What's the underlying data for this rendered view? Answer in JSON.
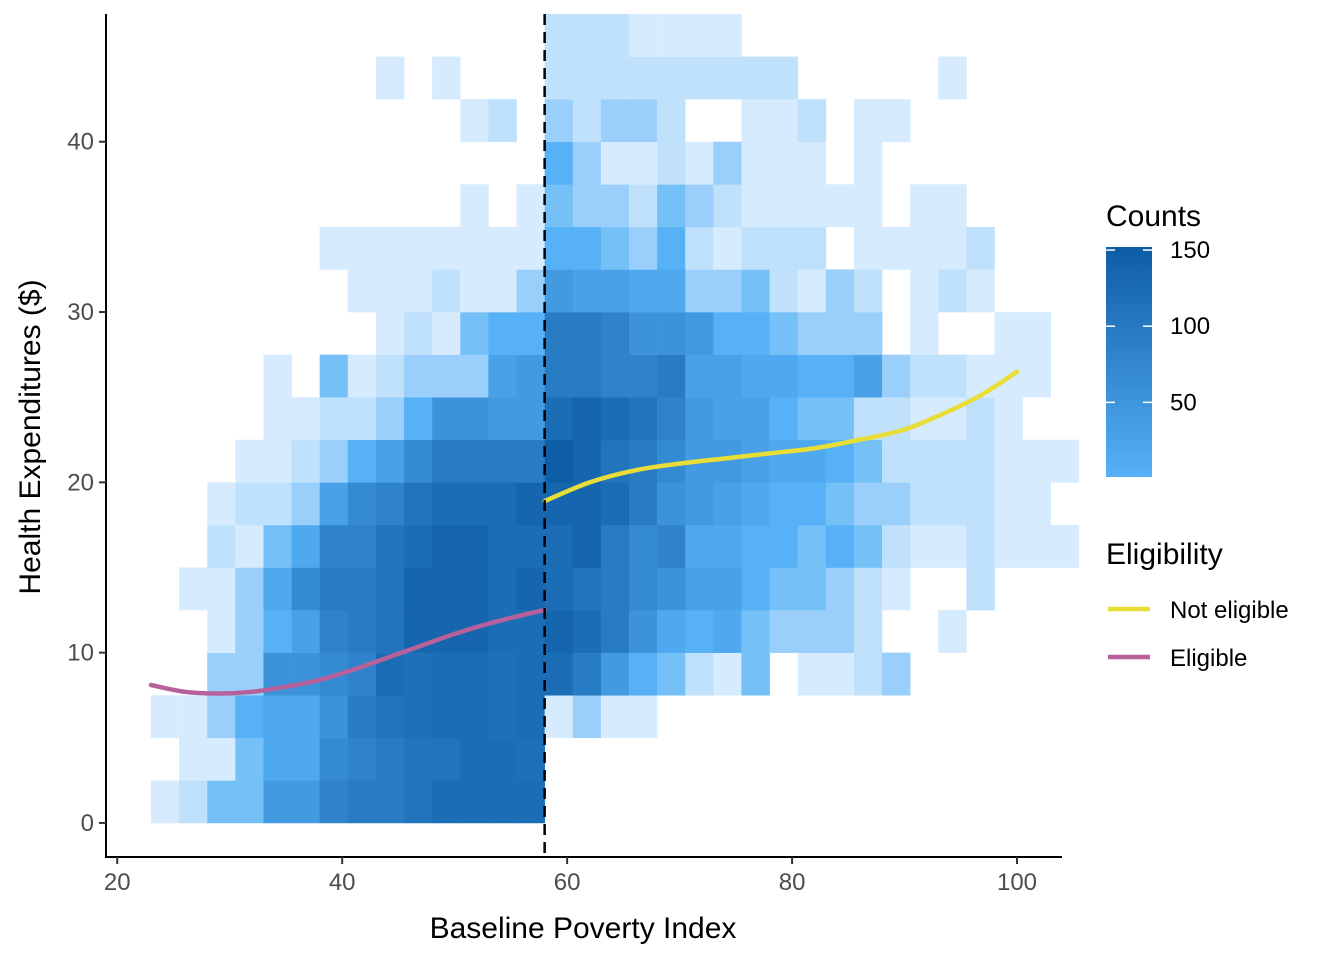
{
  "chart_data": {
    "type": "heatmap",
    "title": "",
    "xlabel": "Baseline Poverty Index",
    "ylabel": "Health Expenditures ($)",
    "xlim": [
      19,
      104
    ],
    "ylim": [
      -2,
      47.5
    ],
    "x_ticks": [
      20,
      40,
      60,
      80,
      100
    ],
    "y_ticks": [
      0,
      10,
      20,
      30,
      40
    ],
    "grid": false,
    "bin_width": 2.5,
    "bin_height": 2.5,
    "bin_x_origin": 23,
    "bin_y_origin": 0,
    "bins_counts_row_order": "rows listed from y = 0 upward; each row holds counts for x bins starting at 23",
    "bins": [
      [
        5,
        10,
        30,
        30,
        70,
        70,
        100,
        110,
        110,
        120,
        130,
        130,
        130,
        130,
        0,
        0,
        0,
        0,
        0,
        0,
        0,
        0,
        0,
        0,
        0,
        0,
        0,
        0,
        0,
        0,
        0,
        0,
        0
      ],
      [
        0,
        5,
        5,
        30,
        50,
        50,
        90,
        100,
        110,
        120,
        120,
        130,
        130,
        125,
        0,
        0,
        0,
        0,
        0,
        0,
        0,
        0,
        0,
        0,
        0,
        0,
        0,
        0,
        0,
        0,
        0,
        0,
        0
      ],
      [
        5,
        5,
        20,
        40,
        50,
        50,
        80,
        110,
        120,
        125,
        130,
        130,
        125,
        130,
        5,
        20,
        5,
        5,
        0,
        0,
        0,
        0,
        0,
        0,
        0,
        0,
        0,
        0,
        0,
        0,
        0,
        0,
        0
      ],
      [
        0,
        0,
        20,
        20,
        80,
        80,
        90,
        100,
        130,
        125,
        130,
        130,
        125,
        130,
        130,
        110,
        70,
        40,
        30,
        10,
        5,
        30,
        0,
        5,
        5,
        10,
        20,
        0,
        0,
        0,
        0,
        0,
        0
      ],
      [
        0,
        0,
        5,
        20,
        40,
        60,
        100,
        110,
        120,
        140,
        140,
        140,
        130,
        130,
        140,
        130,
        110,
        80,
        50,
        40,
        50,
        30,
        20,
        20,
        20,
        10,
        0,
        0,
        5,
        0,
        0,
        0,
        0
      ],
      [
        0,
        5,
        5,
        20,
        50,
        90,
        110,
        110,
        120,
        140,
        140,
        140,
        130,
        140,
        130,
        120,
        110,
        90,
        80,
        60,
        60,
        40,
        30,
        30,
        20,
        10,
        5,
        0,
        0,
        10,
        0,
        0,
        0
      ],
      [
        0,
        0,
        10,
        5,
        30,
        50,
        100,
        100,
        120,
        130,
        140,
        140,
        130,
        130,
        130,
        140,
        110,
        90,
        100,
        50,
        50,
        40,
        40,
        30,
        40,
        30,
        10,
        5,
        5,
        10,
        5,
        5,
        5
      ],
      [
        0,
        0,
        5,
        10,
        10,
        20,
        60,
        90,
        100,
        120,
        130,
        130,
        130,
        140,
        140,
        140,
        130,
        110,
        80,
        70,
        60,
        50,
        40,
        40,
        30,
        20,
        20,
        10,
        10,
        10,
        5,
        5,
        0
      ],
      [
        0,
        0,
        0,
        5,
        5,
        10,
        20,
        40,
        60,
        90,
        110,
        110,
        110,
        110,
        150,
        140,
        120,
        110,
        90,
        70,
        70,
        60,
        50,
        50,
        40,
        30,
        10,
        10,
        10,
        10,
        5,
        5,
        5
      ],
      [
        0,
        0,
        0,
        0,
        5,
        5,
        10,
        10,
        20,
        40,
        80,
        80,
        70,
        70,
        130,
        140,
        130,
        120,
        100,
        70,
        60,
        60,
        40,
        30,
        30,
        10,
        10,
        5,
        5,
        10,
        5,
        0,
        0
      ],
      [
        0,
        0,
        0,
        0,
        5,
        0,
        30,
        5,
        10,
        20,
        20,
        20,
        60,
        70,
        110,
        110,
        100,
        100,
        110,
        60,
        60,
        50,
        50,
        40,
        40,
        60,
        20,
        10,
        10,
        5,
        5,
        5,
        0
      ],
      [
        0,
        0,
        0,
        0,
        0,
        0,
        0,
        0,
        5,
        10,
        5,
        30,
        40,
        40,
        110,
        110,
        100,
        80,
        80,
        70,
        40,
        40,
        30,
        20,
        20,
        20,
        0,
        5,
        0,
        0,
        5,
        5,
        0
      ],
      [
        0,
        0,
        0,
        0,
        0,
        0,
        0,
        5,
        5,
        5,
        10,
        5,
        5,
        20,
        70,
        60,
        60,
        50,
        50,
        20,
        20,
        30,
        10,
        5,
        20,
        10,
        0,
        5,
        10,
        5,
        0,
        0,
        0
      ],
      [
        0,
        0,
        0,
        0,
        0,
        0,
        5,
        5,
        5,
        5,
        5,
        5,
        5,
        5,
        40,
        40,
        30,
        20,
        40,
        10,
        5,
        10,
        10,
        10,
        0,
        5,
        5,
        5,
        5,
        10,
        0,
        0,
        0
      ],
      [
        0,
        0,
        0,
        0,
        0,
        0,
        0,
        0,
        0,
        0,
        0,
        5,
        0,
        5,
        30,
        20,
        20,
        10,
        30,
        20,
        10,
        5,
        5,
        5,
        5,
        5,
        0,
        5,
        5,
        0,
        0,
        0,
        0
      ],
      [
        0,
        0,
        0,
        0,
        0,
        0,
        0,
        0,
        0,
        0,
        0,
        0,
        0,
        0,
        40,
        20,
        5,
        5,
        10,
        5,
        20,
        5,
        5,
        5,
        0,
        5,
        0,
        0,
        0,
        0,
        0,
        0,
        0
      ],
      [
        0,
        0,
        0,
        0,
        0,
        0,
        0,
        0,
        0,
        0,
        0,
        5,
        10,
        0,
        20,
        10,
        20,
        20,
        10,
        0,
        0,
        5,
        5,
        10,
        0,
        5,
        5,
        0,
        0,
        0,
        0,
        0,
        0
      ],
      [
        0,
        0,
        0,
        0,
        0,
        0,
        0,
        0,
        5,
        0,
        5,
        0,
        0,
        0,
        10,
        10,
        10,
        10,
        10,
        10,
        10,
        10,
        10,
        0,
        0,
        0,
        0,
        0,
        5,
        0,
        0,
        0,
        0
      ],
      [
        0,
        0,
        0,
        0,
        0,
        0,
        0,
        0,
        0,
        0,
        0,
        0,
        0,
        0,
        10,
        10,
        10,
        5,
        5,
        5,
        5,
        0,
        0,
        0,
        0,
        0,
        0,
        0,
        0,
        0,
        0,
        0,
        0
      ]
    ],
    "cutoff_x": 58,
    "series": [
      {
        "name": "Not eligible",
        "color": "#E8DE35",
        "x": [
          58,
          62,
          66,
          70,
          74,
          78,
          82,
          86,
          90,
          94,
          97,
          100
        ],
        "y": [
          18.9,
          20.0,
          20.7,
          21.1,
          21.4,
          21.7,
          22.0,
          22.5,
          23.1,
          24.2,
          25.2,
          26.5
        ]
      },
      {
        "name": "Eligible",
        "color": "#B8609A",
        "x": [
          23,
          26,
          29,
          32,
          35,
          38,
          41,
          44,
          47,
          50,
          53,
          56,
          58
        ],
        "y": [
          8.1,
          7.7,
          7.6,
          7.7,
          8.0,
          8.4,
          9.0,
          9.7,
          10.4,
          11.1,
          11.7,
          12.2,
          12.5
        ]
      }
    ],
    "colorbar": {
      "title": "Counts",
      "ticks": [
        50,
        100,
        150
      ],
      "range": [
        1,
        152
      ],
      "low_color": "#56B1F7",
      "high_color": "#0D5CA6"
    },
    "legend": {
      "title": "Eligibility",
      "position": "right"
    }
  }
}
